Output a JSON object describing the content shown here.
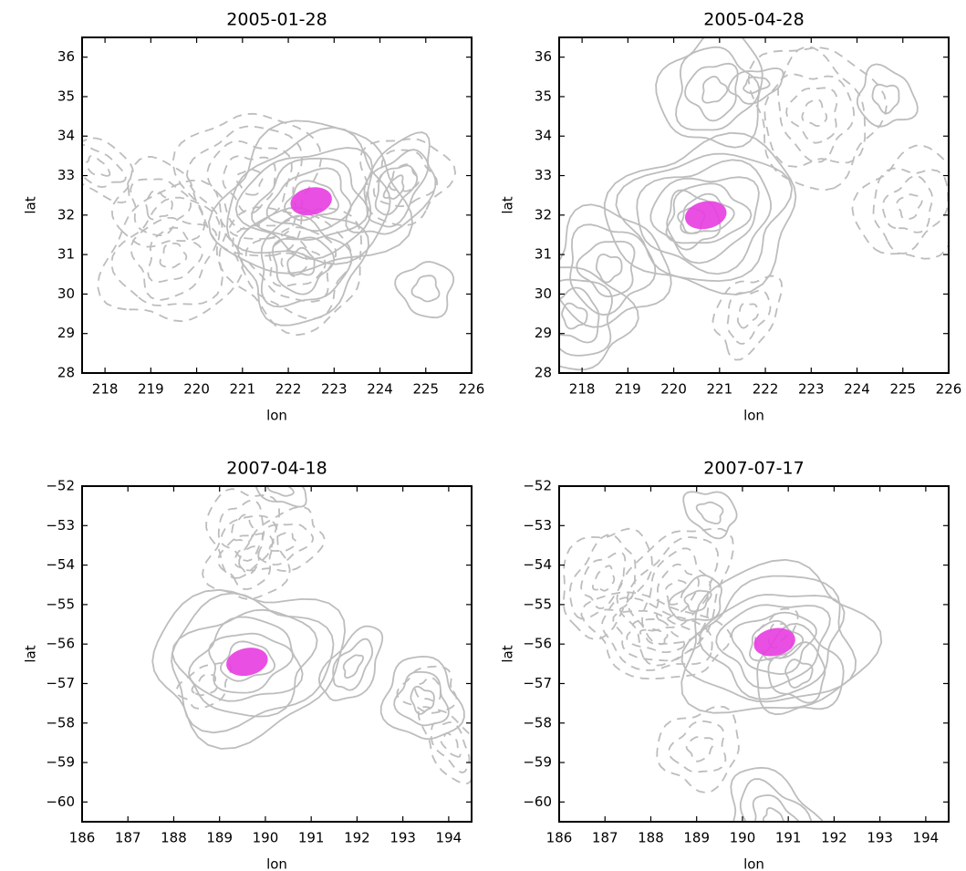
{
  "chart_data": [
    {
      "type": "contour",
      "title": "2005-01-28",
      "xlabel": "lon",
      "ylabel": "lat",
      "xlim": [
        217.5,
        226
      ],
      "xticks": [
        218,
        219,
        220,
        221,
        222,
        223,
        224,
        225,
        226
      ],
      "ylim": [
        28,
        36.5
      ],
      "yticks": [
        28,
        29,
        30,
        31,
        32,
        33,
        34,
        35,
        36
      ],
      "series": [
        {
          "color": "#e83de0",
          "x": [
            222.5
          ],
          "y": [
            32.35
          ]
        }
      ]
    },
    {
      "type": "contour",
      "title": "2005-04-28",
      "xlabel": "lon",
      "ylabel": "lat",
      "xlim": [
        217.5,
        226
      ],
      "xticks": [
        218,
        219,
        220,
        221,
        222,
        223,
        224,
        225,
        226
      ],
      "ylim": [
        28,
        36.5
      ],
      "yticks": [
        28,
        29,
        30,
        31,
        32,
        33,
        34,
        35,
        36
      ],
      "series": [
        {
          "color": "#e83de0",
          "x": [
            220.7
          ],
          "y": [
            32.0
          ]
        }
      ]
    },
    {
      "type": "contour",
      "title": "2007-04-18",
      "xlabel": "lon",
      "ylabel": "lat",
      "xlim": [
        186,
        194.5
      ],
      "xticks": [
        186,
        187,
        188,
        189,
        190,
        191,
        192,
        193,
        194
      ],
      "ylim": [
        -60.5,
        -52
      ],
      "yticks": [
        {
          "value": -60,
          "label": "−60"
        },
        {
          "value": -59,
          "label": "−59"
        },
        {
          "value": -58,
          "label": "−58"
        },
        {
          "value": -57,
          "label": "−57"
        },
        {
          "value": -56,
          "label": "−56"
        },
        {
          "value": -55,
          "label": "−55"
        },
        {
          "value": -54,
          "label": "−54"
        },
        {
          "value": -53,
          "label": "−53"
        },
        {
          "value": -52,
          "label": "−52"
        }
      ],
      "series": [
        {
          "color": "#e83de0",
          "x": [
            189.6
          ],
          "y": [
            -56.45
          ]
        }
      ]
    },
    {
      "type": "contour",
      "title": "2007-07-17",
      "xlabel": "lon",
      "ylabel": "lat",
      "xlim": [
        186,
        194.5
      ],
      "xticks": [
        186,
        187,
        188,
        189,
        190,
        191,
        192,
        193,
        194
      ],
      "ylim": [
        -60.5,
        -52
      ],
      "yticks": [
        {
          "value": -60,
          "label": "−60"
        },
        {
          "value": -59,
          "label": "−59"
        },
        {
          "value": -58,
          "label": "−58"
        },
        {
          "value": -57,
          "label": "−57"
        },
        {
          "value": -56,
          "label": "−56"
        },
        {
          "value": -55,
          "label": "−55"
        },
        {
          "value": -54,
          "label": "−54"
        },
        {
          "value": -53,
          "label": "−53"
        },
        {
          "value": -52,
          "label": "−52"
        }
      ],
      "series": [
        {
          "color": "#e83de0",
          "x": [
            190.7
          ],
          "y": [
            -55.95
          ]
        }
      ]
    }
  ]
}
